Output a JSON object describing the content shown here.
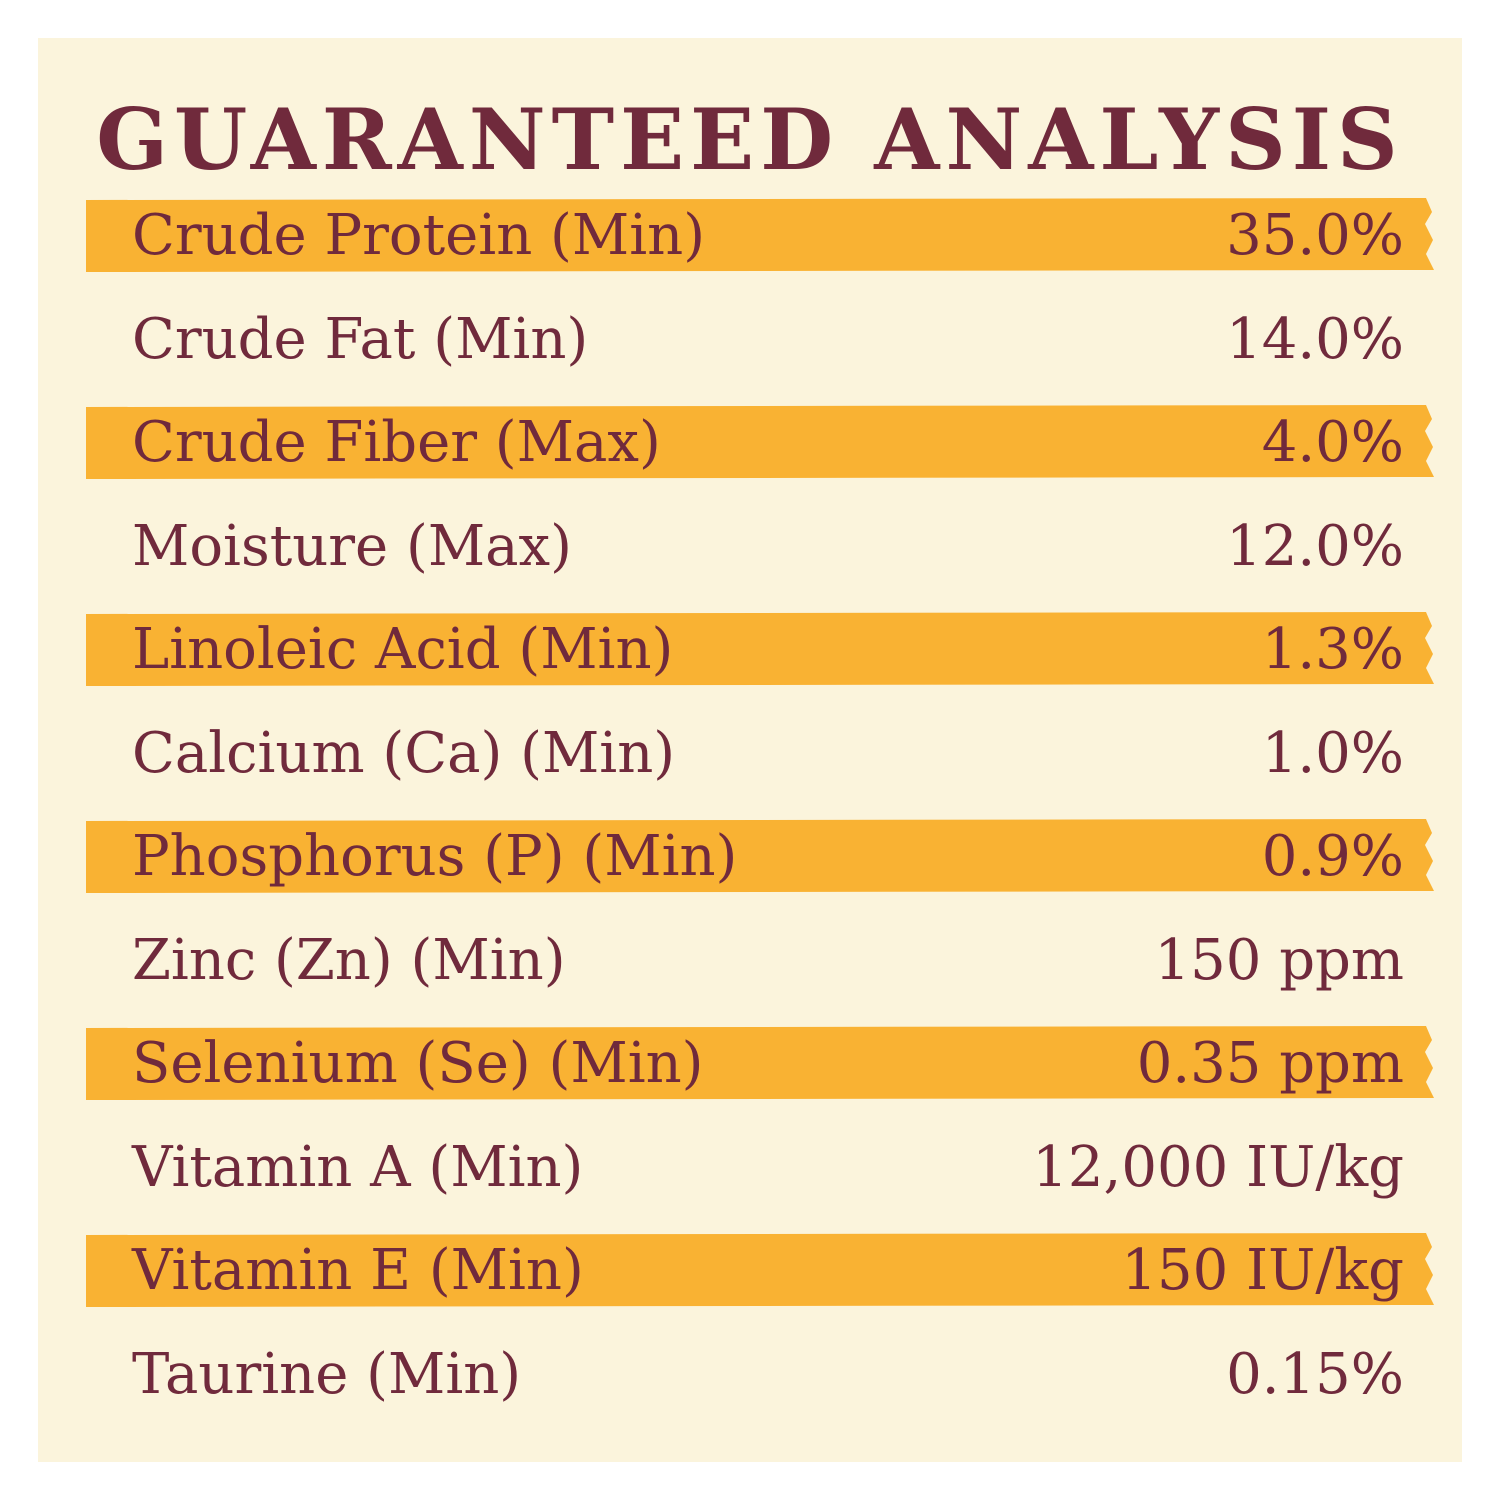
{
  "title": "GUARANTEED ANALYSIS",
  "colors": {
    "background": "#fbf4dc",
    "text": "#702a3c",
    "highlight": "#f9b233"
  },
  "rows": [
    {
      "label": "Crude Protein (Min)",
      "value": "35.0%",
      "highlighted": true
    },
    {
      "label": "Crude Fat (Min)",
      "value": "14.0%",
      "highlighted": false
    },
    {
      "label": "Crude Fiber (Max)",
      "value": "4.0%",
      "highlighted": true
    },
    {
      "label": "Moisture (Max)",
      "value": "12.0%",
      "highlighted": false
    },
    {
      "label": "Linoleic Acid (Min)",
      "value": "1.3%",
      "highlighted": true
    },
    {
      "label": "Calcium (Ca) (Min)",
      "value": "1.0%",
      "highlighted": false
    },
    {
      "label": "Phosphorus (P) (Min)",
      "value": "0.9%",
      "highlighted": true
    },
    {
      "label": "Zinc (Zn) (Min)",
      "value": "150 ppm",
      "highlighted": false
    },
    {
      "label": "Selenium (Se) (Min)",
      "value": "0.35 ppm",
      "highlighted": true
    },
    {
      "label": "Vitamin A (Min)",
      "value": "12,000 IU/kg",
      "highlighted": false
    },
    {
      "label": "Vitamin E (Min)",
      "value": "150 IU/kg",
      "highlighted": true
    },
    {
      "label": "Taurine (Min)",
      "value": "0.15%",
      "highlighted": false
    }
  ]
}
